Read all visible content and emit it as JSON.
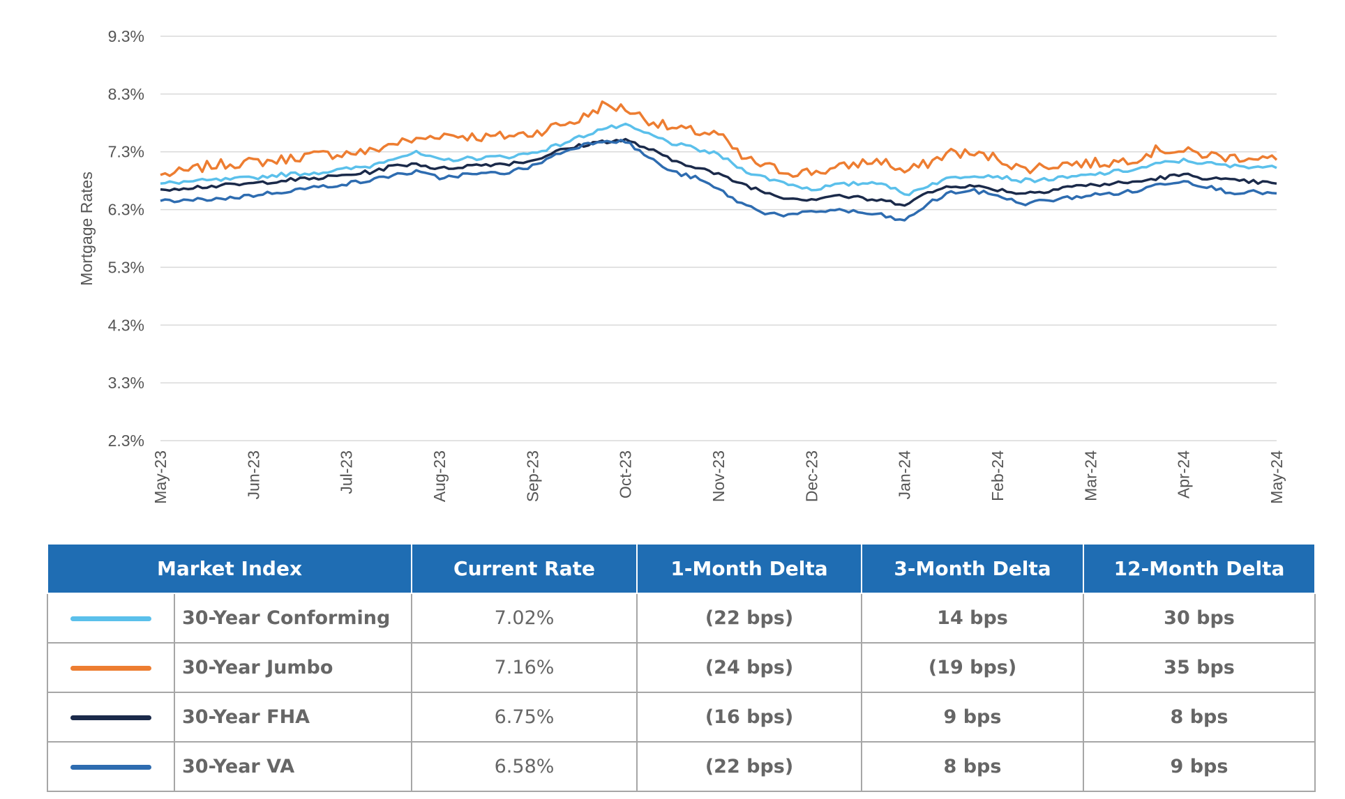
{
  "chart_data": {
    "type": "line",
    "ylabel": "Mortgage Rates",
    "xlabel": "",
    "title": "",
    "ylim": [
      2.3,
      9.3
    ],
    "y_ticks": [
      "9.3%",
      "8.3%",
      "7.3%",
      "6.3%",
      "5.3%",
      "4.3%",
      "3.3%",
      "2.3%"
    ],
    "y_tick_values": [
      9.3,
      8.3,
      7.3,
      6.3,
      5.3,
      4.3,
      3.3,
      2.3
    ],
    "x_ticks": [
      "May-23",
      "Jun-23",
      "Jul-23",
      "Aug-23",
      "Sep-23",
      "Oct-23",
      "Nov-23",
      "Dec-23",
      "Jan-24",
      "Feb-24",
      "Mar-24",
      "Apr-24",
      "May-24"
    ],
    "x_index_range": [
      0,
      12
    ],
    "series": [
      {
        "name": "30-Year Jumbo",
        "color": "#ed7d31",
        "x": [
          0,
          0.25,
          0.5,
          0.75,
          1,
          1.25,
          1.5,
          1.75,
          2,
          2.25,
          2.5,
          2.75,
          3,
          3.25,
          3.5,
          3.75,
          4,
          4.25,
          4.5,
          4.75,
          5,
          5.25,
          5.5,
          5.75,
          6,
          6.25,
          6.5,
          6.75,
          7,
          7.25,
          7.5,
          7.75,
          8,
          8.25,
          8.5,
          8.75,
          9,
          9.25,
          9.5,
          9.75,
          10,
          10.25,
          10.5,
          10.75,
          11,
          11.25,
          11.5,
          11.75,
          12
        ],
        "values": [
          6.9,
          6.95,
          7.05,
          7.1,
          7.12,
          7.15,
          7.22,
          7.25,
          7.28,
          7.3,
          7.45,
          7.5,
          7.6,
          7.58,
          7.55,
          7.58,
          7.62,
          7.75,
          7.85,
          8.1,
          8.05,
          7.85,
          7.7,
          7.65,
          7.6,
          7.2,
          7.05,
          6.95,
          6.95,
          7.0,
          7.1,
          7.15,
          6.95,
          7.1,
          7.3,
          7.25,
          7.2,
          7.0,
          7.05,
          7.1,
          7.1,
          7.12,
          7.2,
          7.35,
          7.3,
          7.25,
          7.2,
          7.22,
          7.16
        ]
      },
      {
        "name": "30-Year Conforming",
        "color": "#5bc0eb",
        "x": [
          0,
          0.25,
          0.5,
          0.75,
          1,
          1.25,
          1.5,
          1.75,
          2,
          2.25,
          2.5,
          2.75,
          3,
          3.25,
          3.5,
          3.75,
          4,
          4.25,
          4.5,
          4.75,
          5,
          5.25,
          5.5,
          5.75,
          6,
          6.25,
          6.5,
          6.75,
          7,
          7.25,
          7.5,
          7.75,
          8,
          8.25,
          8.5,
          8.75,
          9,
          9.25,
          9.5,
          9.75,
          10,
          10.25,
          10.5,
          10.75,
          11,
          11.25,
          11.5,
          11.75,
          12
        ],
        "values": [
          6.75,
          6.78,
          6.8,
          6.82,
          6.85,
          6.9,
          6.92,
          6.95,
          7.0,
          7.05,
          7.2,
          7.28,
          7.15,
          7.18,
          7.2,
          7.22,
          7.28,
          7.4,
          7.55,
          7.7,
          7.75,
          7.6,
          7.45,
          7.35,
          7.25,
          7.0,
          6.85,
          6.75,
          6.65,
          6.72,
          6.75,
          6.78,
          6.55,
          6.72,
          6.85,
          6.9,
          6.88,
          6.8,
          6.82,
          6.85,
          6.9,
          6.95,
          7.0,
          7.1,
          7.15,
          7.1,
          7.05,
          7.05,
          7.02
        ]
      },
      {
        "name": "30-Year FHA",
        "color": "#1b2a4a",
        "x": [
          0,
          0.25,
          0.5,
          0.75,
          1,
          1.25,
          1.5,
          1.75,
          2,
          2.25,
          2.5,
          2.75,
          3,
          3.25,
          3.5,
          3.75,
          4,
          4.25,
          4.5,
          4.75,
          5,
          5.25,
          5.5,
          5.75,
          6,
          6.25,
          6.5,
          6.75,
          7,
          7.25,
          7.5,
          7.75,
          8,
          8.25,
          8.5,
          8.75,
          9,
          9.25,
          9.5,
          9.75,
          10,
          10.25,
          10.5,
          10.75,
          11,
          11.25,
          11.5,
          11.75,
          12
        ],
        "values": [
          6.65,
          6.68,
          6.7,
          6.72,
          6.75,
          6.8,
          6.82,
          6.85,
          6.9,
          6.95,
          7.05,
          7.1,
          7.0,
          7.05,
          7.08,
          7.1,
          7.15,
          7.3,
          7.4,
          7.48,
          7.5,
          7.35,
          7.15,
          7.05,
          6.9,
          6.75,
          6.6,
          6.5,
          6.48,
          6.55,
          6.5,
          6.45,
          6.4,
          6.58,
          6.72,
          6.7,
          6.65,
          6.58,
          6.62,
          6.7,
          6.72,
          6.75,
          6.78,
          6.85,
          6.9,
          6.85,
          6.8,
          6.78,
          6.75
        ]
      },
      {
        "name": "30-Year VA",
        "color": "#2e6cb0",
        "x": [
          0,
          0.25,
          0.5,
          0.75,
          1,
          1.25,
          1.5,
          1.75,
          2,
          2.25,
          2.5,
          2.75,
          3,
          3.25,
          3.5,
          3.75,
          4,
          4.25,
          4.5,
          4.75,
          5,
          5.25,
          5.5,
          5.75,
          6,
          6.25,
          6.5,
          6.75,
          7,
          7.25,
          7.5,
          7.75,
          8,
          8.25,
          8.5,
          8.75,
          9,
          9.25,
          9.5,
          9.75,
          10,
          10.25,
          10.5,
          10.75,
          11,
          11.25,
          11.5,
          11.75,
          12
        ],
        "values": [
          6.45,
          6.45,
          6.48,
          6.5,
          6.55,
          6.6,
          6.65,
          6.7,
          6.75,
          6.8,
          6.9,
          6.95,
          6.85,
          6.9,
          6.92,
          6.95,
          7.05,
          7.25,
          7.4,
          7.5,
          7.48,
          7.2,
          6.95,
          6.85,
          6.65,
          6.4,
          6.25,
          6.2,
          6.25,
          6.3,
          6.25,
          6.2,
          6.1,
          6.4,
          6.6,
          6.62,
          6.55,
          6.4,
          6.45,
          6.5,
          6.55,
          6.58,
          6.62,
          6.75,
          6.8,
          6.7,
          6.6,
          6.6,
          6.58
        ]
      }
    ]
  },
  "table": {
    "headers": [
      "Market Index",
      "Current Rate",
      "1-Month Delta",
      "3-Month Delta",
      "12-Month Delta"
    ],
    "rows": [
      {
        "name": "30-Year Conforming",
        "color": "#5bc0eb",
        "current_rate": "7.02%",
        "one_month": "(22 bps)",
        "three_month": "14 bps",
        "twelve_month": "30 bps"
      },
      {
        "name": "30-Year Jumbo",
        "color": "#ed7d31",
        "current_rate": "7.16%",
        "one_month": "(24 bps)",
        "three_month": "(19 bps)",
        "twelve_month": "35 bps"
      },
      {
        "name": "30-Year FHA",
        "color": "#1b2a4a",
        "current_rate": "6.75%",
        "one_month": "(16 bps)",
        "three_month": "9 bps",
        "twelve_month": "8 bps"
      },
      {
        "name": "30-Year VA",
        "color": "#2e6cb0",
        "current_rate": "6.58%",
        "one_month": "(22 bps)",
        "three_month": "8 bps",
        "twelve_month": "9 bps"
      }
    ]
  }
}
